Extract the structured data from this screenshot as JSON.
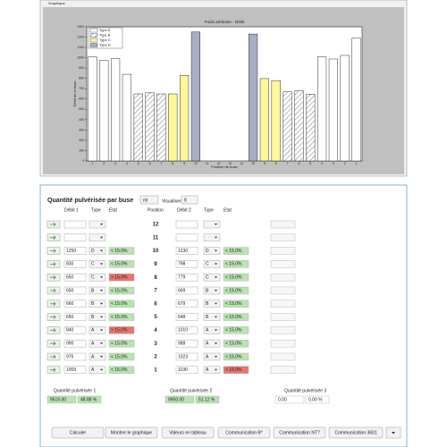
{
  "window": {
    "title": "Graphique"
  },
  "chart_data": {
    "type": "bar",
    "title": "Poids arbitraire - Débit",
    "x_label": "Position de buse",
    "y_label": "Débit de la buse",
    "categories": [
      "1",
      "2",
      "3",
      "4",
      "5",
      "6",
      "7",
      "8",
      "9",
      "10",
      "11",
      "12",
      "12",
      "11",
      "10",
      "9",
      "8",
      "7",
      "6",
      "5",
      "4",
      "3",
      "2",
      "1"
    ],
    "series": [
      {
        "name": "Type A",
        "color": "#ffffff",
        "hatch": false,
        "values": [
          1009,
          975,
          990,
          840,
          null,
          null,
          null,
          null,
          null,
          null,
          null,
          null,
          null,
          null,
          null,
          null,
          null,
          null,
          null,
          null,
          1010,
          988,
          1023,
          1190
        ]
      },
      {
        "name": "Type B",
        "color": "#ffffff",
        "hatch": true,
        "values": [
          null,
          null,
          null,
          null,
          650,
          660,
          650,
          null,
          null,
          null,
          null,
          null,
          null,
          null,
          null,
          null,
          null,
          669,
          679,
          648,
          null,
          null,
          null,
          null
        ]
      },
      {
        "name": "Type C",
        "color": "#fff799",
        "hatch": false,
        "values": [
          null,
          null,
          null,
          null,
          null,
          null,
          null,
          650,
          830,
          null,
          null,
          null,
          null,
          null,
          null,
          798,
          779,
          null,
          null,
          null,
          null,
          null,
          null,
          null
        ]
      },
      {
        "name": "Type D",
        "color": "#a9aec6",
        "hatch": false,
        "values": [
          null,
          null,
          null,
          null,
          null,
          null,
          null,
          null,
          null,
          1250,
          null,
          null,
          null,
          null,
          1230,
          null,
          null,
          null,
          null,
          null,
          null,
          null,
          null,
          null
        ]
      }
    ],
    "ylim": [
      0,
      1300
    ],
    "yticks": [
      0,
      100,
      200,
      300,
      400,
      500,
      600,
      700,
      800,
      900,
      1000,
      1100,
      1200,
      1300
    ],
    "legend": "upper left"
  },
  "form": {
    "title": "Quantité pulvérisée par buse",
    "unit": "ml",
    "visualiser": "Visualiser",
    "visualiser_value": "8",
    "headers": [
      "Débit 1",
      "Type",
      "Etat",
      "Position",
      "Débit 2",
      "Type",
      "Etat"
    ],
    "etat_colors": {
      "ok": "#b9e3b2",
      "alert": "#ea7470"
    },
    "rows": [
      {
        "position": 12
      },
      {
        "position": 11
      },
      {
        "position": 10,
        "debit1": 1250,
        "type1": "D",
        "etat1": {
          "label": "< 15.0%",
          "state": "ok"
        },
        "debit2": 1230,
        "type2": "D",
        "etat2": {
          "label": "< 15.0%",
          "state": "ok"
        }
      },
      {
        "position": 9,
        "debit1": 830,
        "type1": "C",
        "etat1": {
          "label": "< 15.0%",
          "state": "ok"
        },
        "debit2": 798,
        "type2": "C",
        "etat2": {
          "label": "< 15.0%",
          "state": "ok"
        }
      },
      {
        "position": 8,
        "debit1": 650,
        "type1": "C",
        "etat1": {
          "label": "> 15.0%",
          "state": "alert"
        },
        "debit2": 779,
        "type2": "C",
        "etat2": {
          "label": "< 15.0%",
          "state": "ok"
        }
      },
      {
        "position": 7,
        "debit1": 650,
        "type1": "B",
        "etat1": {
          "label": "< 15.0%",
          "state": "ok"
        },
        "debit2": 669,
        "type2": "B",
        "etat2": {
          "label": "< 15.0%",
          "state": "ok"
        }
      },
      {
        "position": 6,
        "debit1": 660,
        "type1": "B",
        "etat1": {
          "label": "< 15.0%",
          "state": "ok"
        },
        "debit2": 679,
        "type2": "B",
        "etat2": {
          "label": "< 15.0%",
          "state": "ok"
        }
      },
      {
        "position": 5,
        "debit1": 650,
        "type1": "B",
        "etat1": {
          "label": "< 15.0%",
          "state": "ok"
        },
        "debit2": 648,
        "type2": "B",
        "etat2": {
          "label": "< 15.0%",
          "state": "ok"
        }
      },
      {
        "position": 4,
        "debit1": 840,
        "type1": "A",
        "etat1": {
          "label": "> 15.0%",
          "state": "alert"
        },
        "debit2": 1010,
        "type2": "A",
        "etat2": {
          "label": "< 15.0%",
          "state": "ok"
        }
      },
      {
        "position": 3,
        "debit1": 990,
        "type1": "A",
        "etat1": {
          "label": "< 15.0%",
          "state": "ok"
        },
        "debit2": 988,
        "type2": "A",
        "etat2": {
          "label": "< 15.0%",
          "state": "ok"
        }
      },
      {
        "position": 2,
        "debit1": 975,
        "type1": "A",
        "etat1": {
          "label": "< 15.0%",
          "state": "ok"
        },
        "debit2": 1023,
        "type2": "A",
        "etat2": {
          "label": "< 15.0%",
          "state": "ok"
        }
      },
      {
        "position": 1,
        "debit1": 1009,
        "type1": "A",
        "etat1": {
          "label": "< 15.0%",
          "state": "ok"
        },
        "debit2": 1190,
        "type2": "A",
        "etat2": {
          "label": "> 15.0%",
          "state": "alert"
        }
      }
    ],
    "totals": [
      {
        "label": "Quantité pulvérisée 1",
        "value": "9515.00",
        "percent": "48.88 %"
      },
      {
        "label": "Quantité pulvérisée 2",
        "value": "9950.00",
        "percent": "51.12 %"
      },
      {
        "label": "Quantité pulvérisée 3",
        "value": "0.00",
        "percent": "0.00 %"
      }
    ],
    "buttons": [
      "Calculer",
      "Montrer le graphique",
      "Valeurs en tableau",
      "Communication B*",
      "Communication NT?",
      "Communication 3601"
    ]
  }
}
